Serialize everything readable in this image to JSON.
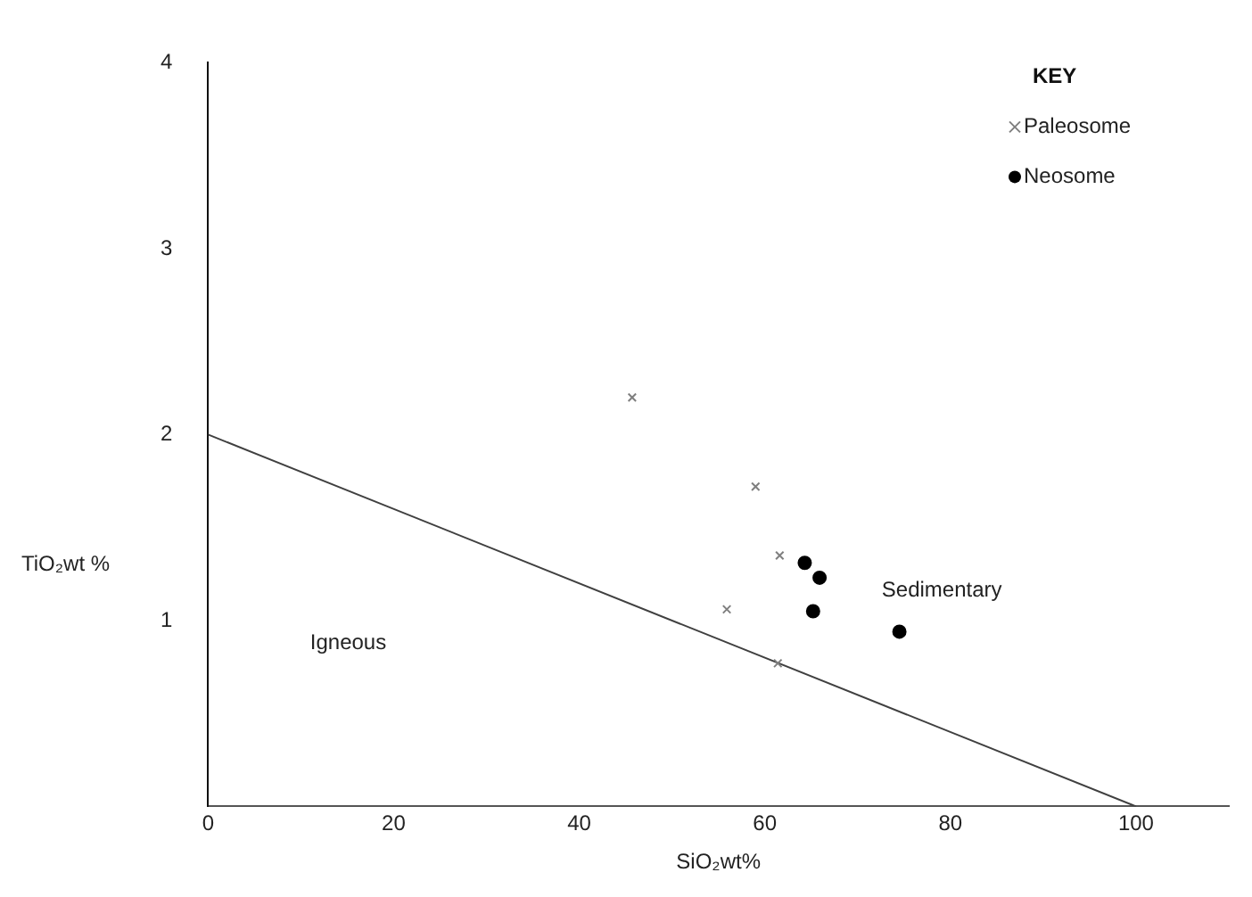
{
  "chart_data": {
    "type": "scatter",
    "xlabel": "SiO₂wt%",
    "ylabel": "TiO₂wt %",
    "legend_title": "KEY",
    "legend": "top right",
    "grid": false,
    "xlim": [
      0,
      110
    ],
    "xticks": [
      0,
      20,
      40,
      60,
      80,
      100
    ],
    "ylim": [
      0,
      4
    ],
    "yticks": [
      1,
      2,
      3,
      4
    ],
    "series": [
      {
        "name": "Paleosome",
        "type": "scatter",
        "marker": "cross",
        "color": "#7f7f7f",
        "x": [
          45.7,
          59.0,
          61.6,
          55.9,
          61.4
        ],
        "values": [
          2.2,
          1.72,
          1.35,
          1.06,
          0.77
        ]
      },
      {
        "name": "Neosome",
        "type": "scatter",
        "marker": "circle",
        "color": "#000000",
        "x": [
          64.3,
          65.9,
          65.2,
          74.5
        ],
        "values": [
          1.31,
          1.23,
          1.05,
          0.94
        ]
      },
      {
        "type": "line",
        "marker": "none",
        "color": "#404040",
        "x": [
          0,
          100
        ],
        "values": [
          2,
          0
        ]
      }
    ],
    "annotations": [
      "Igneous",
      "Sedimentary"
    ]
  }
}
